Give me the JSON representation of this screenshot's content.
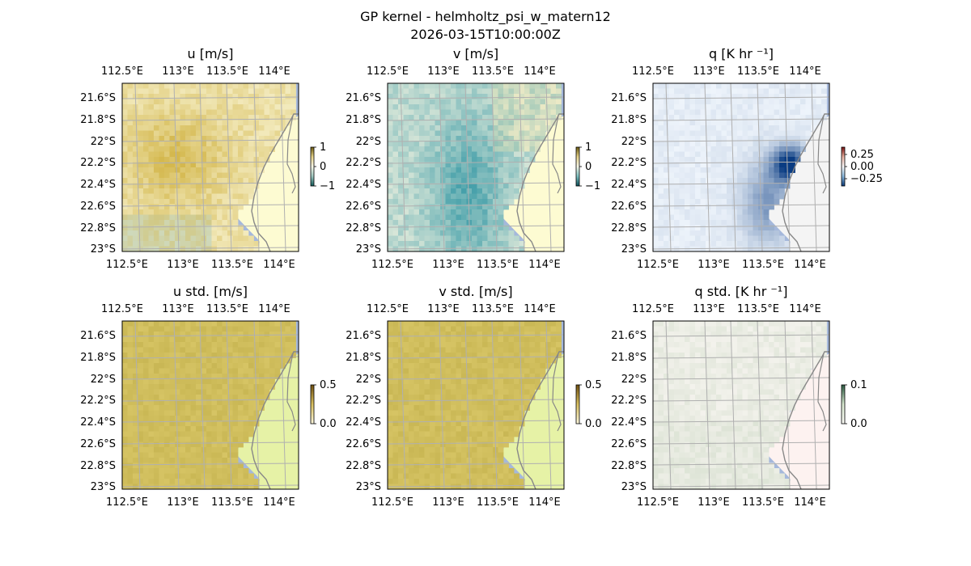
{
  "figure": {
    "title": "GP kernel - helmholtz_psi_w_matern12",
    "timestamp": "2026-03-15T10:00:00Z"
  },
  "colors": {
    "ocean": "#a5b8db",
    "grid": "#b0b0b0",
    "coast": "#888888",
    "land_mean": "#fdfbd2",
    "land_std_uv": "#e6f2a6",
    "land_std_q": "#fdf2f0",
    "mean_uv_base": "#e4d184",
    "mean_v_base": "#a8cfcc",
    "mean_q_base": "#eaf1f8",
    "std_uv_base": "#d3c163",
    "std_q_base": "#ecebe2"
  },
  "chart_data": [
    {
      "type": "heatmap",
      "title": "u [m/s]",
      "variable": "u",
      "colormap": "yellow-green diverging",
      "xticks": [
        "112.5°E",
        "113°E",
        "113.5°E",
        "114°E"
      ],
      "yticks": [
        "21.6°S",
        "21.8°S",
        "22°S",
        "22.2°S",
        "22.4°S",
        "22.6°S",
        "22.8°S",
        "23°S"
      ],
      "xlim": [
        112.35,
        114.25
      ],
      "ylim": [
        -23.0,
        -21.46
      ],
      "colorbar": {
        "ticks": [
          "1",
          "0",
          "−1"
        ],
        "range": [
          -1,
          1
        ]
      }
    },
    {
      "type": "heatmap",
      "title": "v [m/s]",
      "variable": "v",
      "colormap": "yellow-teal diverging",
      "xticks": [
        "112.5°E",
        "113°E",
        "113.5°E",
        "114°E"
      ],
      "yticks": [
        "21.6°S",
        "21.8°S",
        "22°S",
        "22.2°S",
        "22.4°S",
        "22.6°S",
        "22.8°S",
        "23°S"
      ],
      "xlim": [
        112.35,
        114.25
      ],
      "ylim": [
        -23.0,
        -21.46
      ],
      "colorbar": {
        "ticks": [
          "1",
          "0",
          "−1"
        ],
        "range": [
          -1,
          1
        ]
      }
    },
    {
      "type": "heatmap",
      "title": "q [K hr ⁻¹]",
      "variable": "q",
      "colormap": "red-white-blue diverging",
      "xticks": [
        "112.5°E",
        "113°E",
        "113.5°E",
        "114°E"
      ],
      "yticks": [
        "21.6°S",
        "21.8°S",
        "22°S",
        "22.2°S",
        "22.4°S",
        "22.6°S",
        "22.8°S",
        "23°S"
      ],
      "xlim": [
        112.35,
        114.25
      ],
      "ylim": [
        -23.0,
        -21.46
      ],
      "colorbar": {
        "ticks": [
          "0.25",
          "0.00",
          "−0.25"
        ],
        "range": [
          -0.35,
          0.35
        ]
      }
    },
    {
      "type": "heatmap",
      "title": "u std. [m/s]",
      "variable": "u_std",
      "colormap": "sequential gold",
      "xticks": [
        "112.5°E",
        "113°E",
        "113.5°E",
        "114°E"
      ],
      "yticks": [
        "21.6°S",
        "21.8°S",
        "22°S",
        "22.2°S",
        "22.4°S",
        "22.6°S",
        "22.8°S",
        "23°S"
      ],
      "xlim": [
        112.35,
        114.25
      ],
      "ylim": [
        -23.0,
        -21.46
      ],
      "colorbar": {
        "ticks": [
          "0.5",
          "0.0"
        ],
        "range": [
          0,
          0.5
        ]
      }
    },
    {
      "type": "heatmap",
      "title": "v std. [m/s]",
      "variable": "v_std",
      "colormap": "sequential gold",
      "xticks": [
        "112.5°E",
        "113°E",
        "113.5°E",
        "114°E"
      ],
      "yticks": [
        "21.6°S",
        "21.8°S",
        "22°S",
        "22.2°S",
        "22.4°S",
        "22.6°S",
        "22.8°S",
        "23°S"
      ],
      "xlim": [
        112.35,
        114.25
      ],
      "ylim": [
        -23.0,
        -21.46
      ],
      "colorbar": {
        "ticks": [
          "0.5",
          "0.0"
        ],
        "range": [
          0,
          0.5
        ]
      }
    },
    {
      "type": "heatmap",
      "title": "q std. [K hr ⁻¹]",
      "variable": "q_std",
      "colormap": "sequential pale",
      "xticks": [
        "112.5°E",
        "113°E",
        "113.5°E",
        "114°E"
      ],
      "yticks": [
        "21.6°S",
        "21.8°S",
        "22°S",
        "22.2°S",
        "22.4°S",
        "22.6°S",
        "22.8°S",
        "23°S"
      ],
      "xlim": [
        112.35,
        114.25
      ],
      "ylim": [
        -23.0,
        -21.46
      ],
      "colorbar": {
        "ticks": [
          "0.1",
          "0.0"
        ],
        "range": [
          0,
          0.1
        ]
      }
    }
  ]
}
